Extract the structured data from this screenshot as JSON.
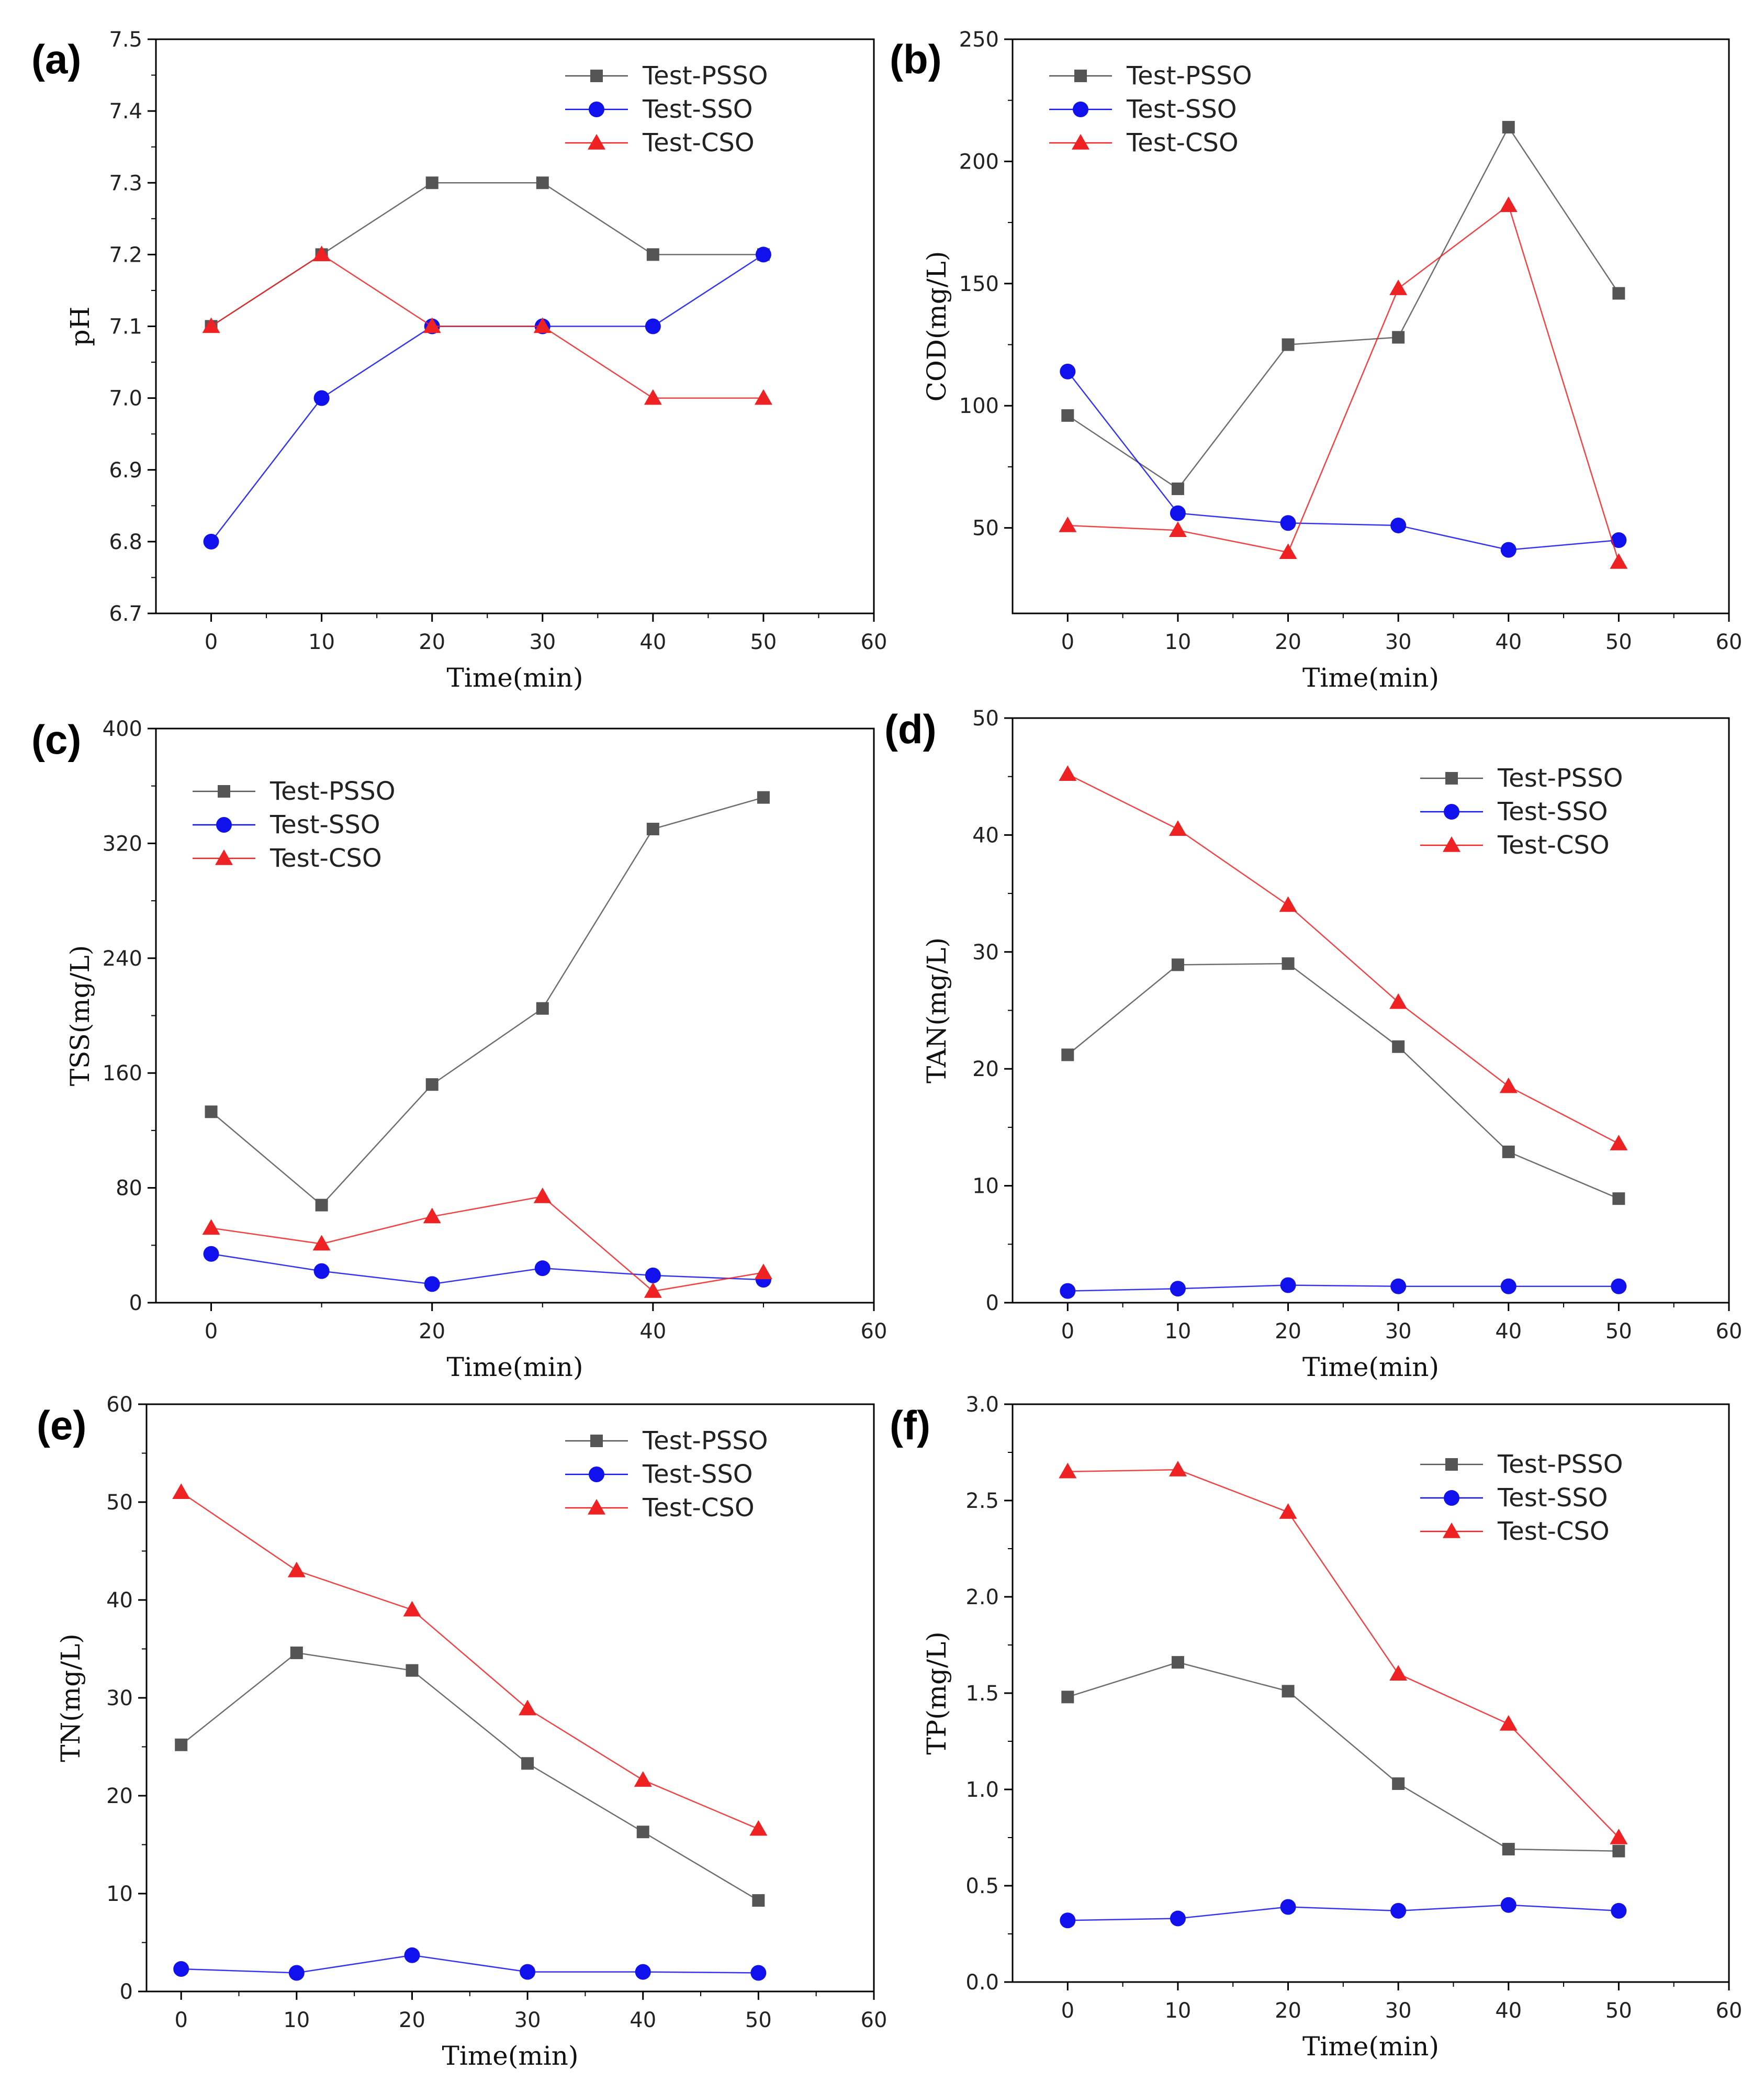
{
  "colors": {
    "PSSO": "#555555",
    "SSO": "#1111ee",
    "CSO": "#ee2222",
    "axis": "#000000"
  },
  "legend_markers": {
    "PSSO": "square",
    "SSO": "circle",
    "CSO": "triangle"
  },
  "chart_data": [
    {
      "type": "line",
      "panel": "(a)",
      "xlabel": "Time(min)",
      "ylabel": "pH",
      "x": [
        0,
        10,
        20,
        30,
        40,
        50
      ],
      "xlim": [
        -5,
        60
      ],
      "xticks": [
        0,
        10,
        20,
        30,
        40,
        50,
        60
      ],
      "ylim": [
        6.7,
        7.5
      ],
      "yticks": [
        6.7,
        6.8,
        6.9,
        7.0,
        7.1,
        7.2,
        7.3,
        7.4,
        7.5
      ],
      "ydecimals": 1,
      "legend_position": "top-right",
      "series": [
        {
          "name": "Test-PSSO",
          "key": "PSSO",
          "values": [
            7.1,
            7.2,
            7.3,
            7.3,
            7.2,
            7.2
          ]
        },
        {
          "name": "Test-SSO",
          "key": "SSO",
          "values": [
            6.8,
            7.0,
            7.1,
            7.1,
            7.1,
            7.2
          ]
        },
        {
          "name": "Test-CSO",
          "key": "CSO",
          "values": [
            7.1,
            7.2,
            7.1,
            7.1,
            7.0,
            7.0
          ]
        }
      ]
    },
    {
      "type": "line",
      "panel": "(b)",
      "xlabel": "Time(min)",
      "ylabel": "COD(mg/L)",
      "x": [
        0,
        10,
        20,
        30,
        40,
        50
      ],
      "xlim": [
        -5,
        60
      ],
      "xticks": [
        0,
        10,
        20,
        30,
        40,
        50,
        60
      ],
      "ylim": [
        15,
        250
      ],
      "yticks": [
        50,
        100,
        150,
        200,
        250
      ],
      "ydecimals": 0,
      "legend_position": "top-left",
      "series": [
        {
          "name": "Test-PSSO",
          "key": "PSSO",
          "values": [
            96,
            66,
            125,
            128,
            214,
            146
          ]
        },
        {
          "name": "Test-SSO",
          "key": "SSO",
          "values": [
            114,
            56,
            52,
            51,
            41,
            45
          ]
        },
        {
          "name": "Test-CSO",
          "key": "CSO",
          "values": [
            51,
            49,
            40,
            148,
            182,
            36
          ]
        }
      ]
    },
    {
      "type": "line",
      "panel": "(c)",
      "xlabel": "Time(min)",
      "ylabel": "TSS(mg/L)",
      "x": [
        0,
        10,
        20,
        30,
        40,
        50
      ],
      "xlim": [
        -5,
        60
      ],
      "xticks": [
        0,
        20,
        40,
        60
      ],
      "ylim": [
        0,
        400
      ],
      "yticks": [
        0,
        80,
        160,
        240,
        320,
        400
      ],
      "ydecimals": 0,
      "legend_position": "top-left",
      "series": [
        {
          "name": "Test-PSSO",
          "key": "PSSO",
          "values": [
            133,
            68,
            152,
            205,
            330,
            352
          ]
        },
        {
          "name": "Test-SSO",
          "key": "SSO",
          "values": [
            34,
            22,
            13,
            24,
            19,
            16
          ]
        },
        {
          "name": "Test-CSO",
          "key": "CSO",
          "values": [
            52,
            41,
            60,
            74,
            8,
            21
          ]
        }
      ]
    },
    {
      "type": "line",
      "panel": "(d)",
      "xlabel": "Time(min)",
      "ylabel": "TAN(mg/L)",
      "x": [
        0,
        10,
        20,
        30,
        40,
        50
      ],
      "xlim": [
        -5,
        60
      ],
      "xticks": [
        0,
        10,
        20,
        30,
        40,
        50,
        60
      ],
      "ylim": [
        0,
        50
      ],
      "yticks": [
        0,
        10,
        20,
        30,
        40,
        50
      ],
      "ydecimals": 0,
      "legend_position": "top-right",
      "series": [
        {
          "name": "Test-PSSO",
          "key": "PSSO",
          "values": [
            21.2,
            28.9,
            29.0,
            21.9,
            12.9,
            8.9
          ]
        },
        {
          "name": "Test-SSO",
          "key": "SSO",
          "values": [
            1.0,
            1.2,
            1.5,
            1.4,
            1.4,
            1.4
          ]
        },
        {
          "name": "Test-CSO",
          "key": "CSO",
          "values": [
            45.2,
            40.5,
            34.0,
            25.7,
            18.5,
            13.6
          ]
        }
      ]
    },
    {
      "type": "line",
      "panel": "(e)",
      "xlabel": "Time(min)",
      "ylabel": "TN(mg/L)",
      "x": [
        0,
        10,
        20,
        30,
        40,
        50
      ],
      "xlim": [
        -3,
        60
      ],
      "xticks": [
        0,
        10,
        20,
        30,
        40,
        50,
        60
      ],
      "ylim": [
        0,
        60
      ],
      "yticks": [
        0,
        10,
        20,
        30,
        40,
        50,
        60
      ],
      "ydecimals": 0,
      "legend_position": "top-right",
      "series": [
        {
          "name": "Test-PSSO",
          "key": "PSSO",
          "values": [
            25.2,
            34.6,
            32.8,
            23.3,
            16.3,
            9.3
          ]
        },
        {
          "name": "Test-SSO",
          "key": "SSO",
          "values": [
            2.3,
            1.9,
            3.7,
            2.0,
            2.0,
            1.9
          ]
        },
        {
          "name": "Test-CSO",
          "key": "CSO",
          "values": [
            51.0,
            43.0,
            39.0,
            28.9,
            21.6,
            16.6
          ]
        }
      ]
    },
    {
      "type": "line",
      "panel": "(f)",
      "xlabel": "Time(min)",
      "ylabel": "TP(mg/L)",
      "x": [
        0,
        10,
        20,
        30,
        40,
        50
      ],
      "xlim": [
        -5,
        60
      ],
      "xticks": [
        0,
        10,
        20,
        30,
        40,
        50,
        60
      ],
      "ylim": [
        0,
        3
      ],
      "yticks": [
        0.0,
        0.5,
        1.0,
        1.5,
        2.0,
        2.5,
        3.0
      ],
      "ydecimals": 1,
      "legend_position": "top-right",
      "series": [
        {
          "name": "Test-PSSO",
          "key": "PSSO",
          "values": [
            1.48,
            1.66,
            1.51,
            1.03,
            0.69,
            0.68
          ]
        },
        {
          "name": "Test-SSO",
          "key": "SSO",
          "values": [
            0.32,
            0.33,
            0.39,
            0.37,
            0.4,
            0.37
          ]
        },
        {
          "name": "Test-CSO",
          "key": "CSO",
          "values": [
            2.65,
            2.66,
            2.44,
            1.6,
            1.34,
            0.75
          ]
        }
      ]
    }
  ]
}
